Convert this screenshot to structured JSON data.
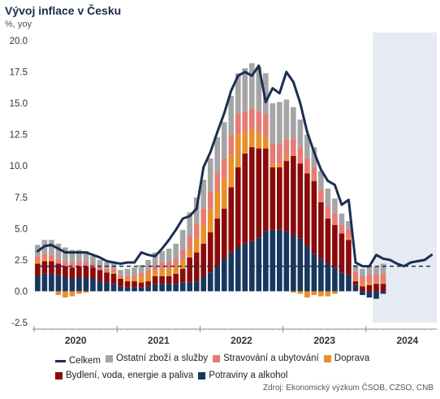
{
  "chart_data": {
    "type": "bar",
    "title": "Vývoj inflace v Česku",
    "ylabel": "%, yoy",
    "source": "Zdroj: Ekonomický výzkum ČSOB, CZSO, CNB",
    "ylim": [
      -2.5,
      20.0
    ],
    "yticks": [
      "20.0",
      "17.5",
      "15.0",
      "12.5",
      "10.0",
      "7.5",
      "5.0",
      "2.5",
      "0.0",
      "-2.5"
    ],
    "xticks": [
      "2020",
      "2021",
      "2022",
      "2023",
      "2024"
    ],
    "target": 2.0,
    "forecast_from": 49,
    "colors": {
      "celkem": "#1b2e52",
      "ostatni": "#a5a5a5",
      "stravovani": "#e67c73",
      "doprava": "#e8902a",
      "bydleni": "#8b0a0a",
      "potraviny": "#17375e",
      "forecast_bg": "#e6eaf2",
      "target": "#1b2e52"
    },
    "series": [
      {
        "key": "potraviny",
        "name": "Potraviny a alkohol",
        "values": [
          1.2,
          1.4,
          1.4,
          1.3,
          1.1,
          1.0,
          1.1,
          1.1,
          1.0,
          0.8,
          0.7,
          0.6,
          0.4,
          0.3,
          0.3,
          0.3,
          0.4,
          0.6,
          0.6,
          0.6,
          0.6,
          0.7,
          0.7,
          0.8,
          1.2,
          1.5,
          2.0,
          2.6,
          3.1,
          3.5,
          3.8,
          4.0,
          4.3,
          4.8,
          4.9,
          4.9,
          4.8,
          4.5,
          4.2,
          3.6,
          3.0,
          2.6,
          2.2,
          1.9,
          1.5,
          1.3,
          0.5,
          -0.3,
          -0.5,
          -0.6,
          -0.2
        ]
      },
      {
        "key": "bydleni",
        "name": "Bydlení, voda, energie a paliva",
        "values": [
          1.0,
          1.0,
          1.0,
          0.9,
          0.9,
          0.9,
          0.9,
          0.9,
          0.9,
          0.9,
          0.8,
          0.8,
          0.6,
          0.5,
          0.5,
          0.4,
          0.4,
          0.6,
          0.6,
          0.6,
          0.8,
          1.1,
          2.0,
          2.3,
          2.6,
          3.2,
          3.8,
          4.0,
          5.2,
          6.4,
          7.2,
          7.5,
          7.1,
          6.6,
          5.0,
          5.0,
          5.6,
          6.3,
          6.0,
          5.8,
          5.8,
          4.5,
          3.6,
          3.4,
          3.1,
          2.8,
          0.3,
          0.4,
          0.5,
          0.6,
          0.6
        ]
      },
      {
        "key": "doprava",
        "name": "Doprava",
        "values": [
          0.2,
          0.2,
          0.1,
          -0.3,
          -0.5,
          -0.4,
          -0.2,
          -0.1,
          0.0,
          0.0,
          0.0,
          0.1,
          0.1,
          0.2,
          0.3,
          0.5,
          0.6,
          0.5,
          0.6,
          0.6,
          0.6,
          0.7,
          0.7,
          1.1,
          1.5,
          1.8,
          2.2,
          2.4,
          2.6,
          2.6,
          1.6,
          1.4,
          1.2,
          0.9,
          0.3,
          0.2,
          0.2,
          -0.1,
          -0.2,
          -0.5,
          -0.3,
          -0.4,
          -0.4,
          -0.2,
          0.0,
          0.1,
          0.1,
          0.2,
          0.2,
          0.1,
          0.1
        ]
      },
      {
        "key": "stravovani",
        "name": "Stravování a ubytování",
        "values": [
          0.4,
          0.4,
          0.4,
          0.4,
          0.4,
          0.4,
          0.4,
          0.4,
          0.3,
          0.3,
          0.3,
          0.3,
          0.2,
          0.2,
          0.2,
          0.3,
          0.3,
          0.4,
          0.5,
          0.6,
          0.6,
          0.8,
          1.0,
          1.2,
          1.3,
          1.5,
          1.5,
          1.6,
          1.6,
          1.7,
          1.7,
          1.7,
          1.8,
          1.8,
          1.6,
          1.6,
          1.5,
          1.4,
          1.3,
          1.2,
          1.1,
          1.0,
          1.0,
          0.9,
          0.7,
          0.8,
          0.7,
          0.6,
          0.6,
          0.7,
          0.7
        ]
      },
      {
        "key": "ostatni",
        "name": "Ostatní zboží a služby",
        "values": [
          0.9,
          1.1,
          1.2,
          1.2,
          1.1,
          1.0,
          0.9,
          0.8,
          0.6,
          0.5,
          0.5,
          0.5,
          0.4,
          0.6,
          0.6,
          0.6,
          0.8,
          1.0,
          0.9,
          1.0,
          1.2,
          1.6,
          1.9,
          2.1,
          2.3,
          2.6,
          2.8,
          2.9,
          3.1,
          3.2,
          3.5,
          3.6,
          3.5,
          3.3,
          3.2,
          3.4,
          3.2,
          2.5,
          2.2,
          1.9,
          1.6,
          1.5,
          1.4,
          1.2,
          0.9,
          0.6,
          0.5,
          0.6,
          0.7,
          0.6,
          0.8
        ]
      },
      {
        "key": "celkem",
        "name": "Celkem",
        "type": "line",
        "values": [
          3.2,
          3.6,
          3.7,
          3.4,
          3.1,
          3.1,
          3.1,
          3.1,
          2.9,
          2.7,
          2.4,
          2.3,
          2.2,
          2.3,
          2.3,
          3.1,
          2.9,
          2.8,
          3.4,
          4.1,
          4.9,
          5.8,
          6.0,
          6.6,
          9.9,
          11.1,
          12.7,
          14.2,
          16.0,
          17.2,
          17.5,
          17.2,
          18.0,
          15.1,
          16.2,
          15.8,
          17.5,
          16.7,
          15.0,
          12.7,
          11.1,
          9.7,
          8.8,
          8.5,
          6.9,
          7.3,
          2.3,
          2.0,
          2.0,
          2.9,
          2.6,
          2.5,
          2.2,
          2.0,
          2.3,
          2.4,
          2.5,
          2.9
        ]
      }
    ],
    "legend": [
      "Celkem",
      "Ostatní zboží a služby",
      "Stravování a ubytování",
      "Doprava",
      "Bydlení, voda, energie a paliva",
      "Potraviny a alkohol"
    ]
  }
}
